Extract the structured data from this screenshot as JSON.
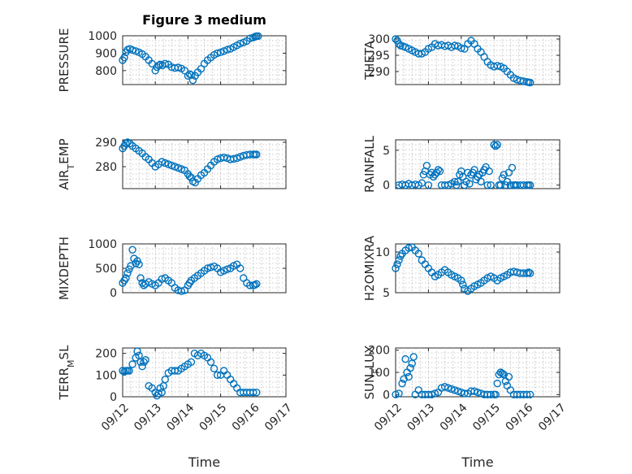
{
  "chart_data": [
    {
      "type": "scatter",
      "title": "Figure 3 medium",
      "ylabel": "PRESSURE",
      "ylim": [
        720,
        1000
      ],
      "yticks": [
        800,
        900,
        1000
      ],
      "yticklabels": [
        "800",
        "900",
        "1000"
      ],
      "xlim": [
        0,
        5
      ],
      "xticks": [
        0,
        1,
        2,
        3,
        4,
        5
      ],
      "x": [
        0.0,
        0.05,
        0.1,
        0.15,
        0.22,
        0.3,
        0.4,
        0.5,
        0.6,
        0.7,
        0.8,
        0.9,
        1.0,
        1.05,
        1.1,
        1.15,
        1.22,
        1.3,
        1.4,
        1.5,
        1.6,
        1.7,
        1.8,
        1.9,
        2.0,
        2.05,
        2.1,
        2.15,
        2.22,
        2.3,
        2.4,
        2.5,
        2.6,
        2.7,
        2.8,
        2.9,
        3.0,
        3.1,
        3.2,
        3.3,
        3.4,
        3.5,
        3.6,
        3.7,
        3.8,
        3.9,
        4.0,
        4.05,
        4.1,
        4.15
      ],
      "y": [
        860,
        875,
        905,
        920,
        925,
        918,
        912,
        905,
        895,
        880,
        860,
        840,
        800,
        820,
        830,
        835,
        830,
        840,
        835,
        820,
        815,
        818,
        812,
        800,
        770,
        780,
        775,
        745,
        770,
        790,
        810,
        840,
        860,
        875,
        890,
        900,
        905,
        912,
        920,
        925,
        935,
        945,
        955,
        962,
        970,
        985,
        990,
        995,
        998,
        998
      ]
    },
    {
      "type": "scatter",
      "ylabel": "THETA",
      "ylim": [
        286,
        301
      ],
      "yticks": [
        290,
        295,
        300
      ],
      "yticklabels": [
        "290",
        "295",
        "300"
      ],
      "xlim": [
        0,
        5
      ],
      "xticks": [
        0,
        1,
        2,
        3,
        4,
        5
      ],
      "x": [
        0.0,
        0.05,
        0.1,
        0.15,
        0.22,
        0.3,
        0.4,
        0.5,
        0.6,
        0.7,
        0.8,
        0.9,
        1.0,
        1.1,
        1.2,
        1.3,
        1.4,
        1.5,
        1.6,
        1.7,
        1.8,
        1.9,
        2.0,
        2.1,
        2.2,
        2.3,
        2.4,
        2.5,
        2.6,
        2.7,
        2.8,
        2.9,
        3.0,
        3.1,
        3.2,
        3.3,
        3.4,
        3.5,
        3.6,
        3.7,
        3.8,
        3.9,
        4.0,
        4.05,
        4.1
      ],
      "y": [
        300,
        299.5,
        298.5,
        298,
        297.8,
        297.5,
        297,
        296.5,
        296,
        295.5,
        295.5,
        296,
        297,
        297.5,
        298.5,
        298,
        298.2,
        297.8,
        298,
        297.5,
        298,
        297.8,
        297.2,
        297,
        298.5,
        299.5,
        298.5,
        297,
        296,
        294.5,
        293,
        292,
        291.5,
        291.8,
        291.5,
        291,
        290,
        289,
        288,
        287.5,
        287.2,
        287,
        286.8,
        286.7,
        286.6
      ]
    },
    {
      "type": "scatter",
      "ylabel": "AIR_TEMP",
      "ylim": [
        271,
        291
      ],
      "yticks": [
        280,
        290
      ],
      "yticklabels": [
        "280",
        "290"
      ],
      "xlim": [
        0,
        5
      ],
      "xticks": [
        0,
        1,
        2,
        3,
        4,
        5
      ],
      "x": [
        0.0,
        0.05,
        0.1,
        0.15,
        0.22,
        0.3,
        0.4,
        0.5,
        0.6,
        0.7,
        0.8,
        0.9,
        1.0,
        1.1,
        1.2,
        1.3,
        1.4,
        1.5,
        1.6,
        1.7,
        1.8,
        1.9,
        2.0,
        2.05,
        2.1,
        2.15,
        2.22,
        2.3,
        2.4,
        2.5,
        2.6,
        2.7,
        2.8,
        2.9,
        3.0,
        3.1,
        3.2,
        3.3,
        3.4,
        3.5,
        3.6,
        3.7,
        3.8,
        3.9,
        4.0,
        4.05,
        4.1
      ],
      "y": [
        287.5,
        288.5,
        289.5,
        290,
        289.5,
        288.5,
        287.5,
        286.5,
        285.5,
        284,
        283,
        281.5,
        280,
        281,
        282,
        281.5,
        281,
        280.5,
        280,
        279.5,
        279,
        278.5,
        277,
        276,
        275.5,
        274,
        273.5,
        275,
        276.5,
        277.5,
        279,
        280.5,
        282,
        283,
        283.5,
        283.8,
        283.5,
        283,
        283.2,
        283.5,
        284,
        284.5,
        284.8,
        285,
        285,
        285,
        285
      ]
    },
    {
      "type": "scatter",
      "ylabel": "RAINFALL",
      "ylim": [
        -0.5,
        6.5
      ],
      "yticks": [
        0,
        5
      ],
      "yticklabels": [
        "0",
        "5"
      ],
      "xlim": [
        0,
        5
      ],
      "xticks": [
        0,
        1,
        2,
        3,
        4,
        5
      ],
      "x": [
        0.1,
        0.2,
        0.3,
        0.4,
        0.5,
        0.6,
        0.7,
        0.8,
        0.85,
        0.9,
        0.95,
        1.0,
        1.05,
        1.1,
        1.15,
        1.2,
        1.25,
        1.3,
        1.35,
        1.4,
        1.5,
        1.6,
        1.7,
        1.8,
        1.85,
        1.9,
        1.95,
        2.0,
        2.05,
        2.1,
        2.15,
        2.2,
        2.25,
        2.3,
        2.35,
        2.4,
        2.45,
        2.5,
        2.55,
        2.6,
        2.65,
        2.7,
        2.75,
        2.8,
        2.85,
        2.9,
        3.0,
        3.05,
        3.1,
        3.15,
        3.2,
        3.25,
        3.3,
        3.35,
        3.4,
        3.45,
        3.5,
        3.55,
        3.6,
        3.65,
        3.7,
        3.8,
        3.9,
        4.0,
        4.05,
        4.1
      ],
      "y": [
        0,
        0.1,
        0,
        0.2,
        0,
        0.1,
        0,
        0.3,
        1.5,
        2,
        2.8,
        0,
        1.5,
        1.8,
        1.2,
        1.5,
        1.8,
        2.2,
        2,
        0,
        0,
        0,
        0.2,
        0.5,
        0,
        0.5,
        1.5,
        2,
        1.2,
        0,
        0.5,
        1.8,
        0.2,
        1.5,
        1.8,
        2.2,
        0.8,
        1.2,
        1.5,
        0.5,
        1.8,
        2.2,
        2.6,
        0,
        2,
        0,
        5.8,
        5.6,
        5.8,
        0,
        0,
        1,
        1.5,
        0,
        0.5,
        1.8,
        0,
        2.5,
        0,
        0,
        0,
        0,
        0,
        0,
        0,
        0
      ]
    },
    {
      "type": "scatter",
      "ylabel": "MIXDEPTH",
      "ylim": [
        0,
        1000
      ],
      "yticks": [
        0,
        500,
        1000
      ],
      "yticklabels": [
        "0",
        "500",
        "1000"
      ],
      "xlim": [
        0,
        5
      ],
      "xticks": [
        0,
        1,
        2,
        3,
        4,
        5
      ],
      "x": [
        0.0,
        0.05,
        0.1,
        0.15,
        0.2,
        0.25,
        0.3,
        0.35,
        0.4,
        0.45,
        0.5,
        0.55,
        0.6,
        0.65,
        0.7,
        0.8,
        0.9,
        1.0,
        1.1,
        1.2,
        1.3,
        1.4,
        1.5,
        1.6,
        1.7,
        1.8,
        1.9,
        2.0,
        2.05,
        2.1,
        2.2,
        2.3,
        2.4,
        2.5,
        2.6,
        2.7,
        2.8,
        2.9,
        3.0,
        3.1,
        3.2,
        3.3,
        3.4,
        3.5,
        3.6,
        3.7,
        3.8,
        3.9,
        4.0,
        4.05,
        4.1
      ],
      "y": [
        200,
        250,
        300,
        400,
        480,
        550,
        880,
        700,
        600,
        650,
        580,
        300,
        200,
        150,
        180,
        220,
        180,
        150,
        200,
        280,
        300,
        250,
        200,
        100,
        50,
        30,
        50,
        150,
        200,
        250,
        300,
        350,
        400,
        450,
        500,
        520,
        540,
        500,
        420,
        450,
        480,
        500,
        550,
        580,
        500,
        300,
        200,
        150,
        150,
        160,
        180
      ]
    },
    {
      "type": "scatter",
      "ylabel": "H2OMIXRA",
      "ylim": [
        5,
        11
      ],
      "yticks": [
        5,
        10
      ],
      "yticklabels": [
        "5",
        "10"
      ],
      "xlim": [
        0,
        5
      ],
      "xticks": [
        0,
        1,
        2,
        3,
        4,
        5
      ],
      "x": [
        0.0,
        0.05,
        0.1,
        0.15,
        0.2,
        0.3,
        0.4,
        0.5,
        0.6,
        0.7,
        0.8,
        0.9,
        1.0,
        1.1,
        1.2,
        1.3,
        1.4,
        1.5,
        1.6,
        1.7,
        1.8,
        1.9,
        2.0,
        2.05,
        2.1,
        2.2,
        2.3,
        2.4,
        2.5,
        2.6,
        2.7,
        2.8,
        2.9,
        3.0,
        3.1,
        3.2,
        3.3,
        3.4,
        3.5,
        3.6,
        3.7,
        3.8,
        3.9,
        4.0,
        4.05,
        4.1
      ],
      "y": [
        8,
        8.5,
        9,
        9.5,
        9.8,
        10.2,
        10.5,
        10.6,
        10.2,
        9.8,
        9,
        8.5,
        8,
        7.5,
        7,
        7.2,
        7.5,
        7.8,
        7.5,
        7.2,
        7,
        6.8,
        6.5,
        6,
        5.5,
        5.2,
        5.5,
        5.8,
        6,
        6.2,
        6.5,
        6.8,
        7,
        6.8,
        6.5,
        6.8,
        7,
        7.2,
        7.5,
        7.6,
        7.5,
        7.4,
        7.4,
        7.4,
        7.5,
        7.4
      ]
    },
    {
      "type": "scatter",
      "ylabel": "TERR_MSL",
      "ylim": [
        0,
        225
      ],
      "yticks": [
        0,
        100,
        200
      ],
      "yticklabels": [
        "0",
        "100",
        "200"
      ],
      "xlim": [
        0,
        5
      ],
      "xticks": [
        0,
        1,
        2,
        3,
        4,
        5
      ],
      "x": [
        0.0,
        0.05,
        0.1,
        0.15,
        0.2,
        0.3,
        0.4,
        0.45,
        0.5,
        0.55,
        0.6,
        0.65,
        0.7,
        0.8,
        0.9,
        1.0,
        1.05,
        1.1,
        1.15,
        1.2,
        1.25,
        1.3,
        1.4,
        1.5,
        1.6,
        1.7,
        1.8,
        1.9,
        2.0,
        2.1,
        2.2,
        2.3,
        2.4,
        2.5,
        2.6,
        2.7,
        2.8,
        2.9,
        3.0,
        3.1,
        3.2,
        3.3,
        3.4,
        3.5,
        3.6,
        3.7,
        3.8,
        3.9,
        4.0,
        4.1
      ],
      "y": [
        120,
        115,
        120,
        120,
        120,
        150,
        180,
        210,
        190,
        160,
        140,
        160,
        170,
        50,
        40,
        20,
        5,
        15,
        40,
        20,
        50,
        80,
        110,
        120,
        120,
        120,
        130,
        140,
        150,
        160,
        200,
        190,
        200,
        190,
        180,
        160,
        130,
        100,
        100,
        120,
        100,
        80,
        60,
        40,
        20,
        20,
        20,
        20,
        20,
        20
      ]
    },
    {
      "type": "scatter",
      "ylabel": "SUN_FLUX",
      "ylim": [
        -10,
        210
      ],
      "yticks": [
        0,
        100,
        200
      ],
      "yticklabels": [
        "0",
        "100",
        "200"
      ],
      "xlim": [
        0,
        5
      ],
      "xticks": [
        0,
        1,
        2,
        3,
        4,
        5
      ],
      "x": [
        0.0,
        0.1,
        0.2,
        0.25,
        0.3,
        0.35,
        0.4,
        0.45,
        0.5,
        0.55,
        0.6,
        0.7,
        0.8,
        0.9,
        1.0,
        1.1,
        1.2,
        1.3,
        1.4,
        1.5,
        1.6,
        1.7,
        1.8,
        1.9,
        2.0,
        2.1,
        2.2,
        2.3,
        2.4,
        2.5,
        2.6,
        2.7,
        2.8,
        2.9,
        3.0,
        3.05,
        3.1,
        3.15,
        3.2,
        3.25,
        3.3,
        3.35,
        3.4,
        3.45,
        3.5,
        3.6,
        3.7,
        3.8,
        3.9,
        4.0,
        4.1
      ],
      "y": [
        0,
        5,
        50,
        70,
        160,
        100,
        80,
        120,
        140,
        170,
        0,
        20,
        0,
        0,
        0,
        0,
        5,
        10,
        30,
        35,
        30,
        25,
        20,
        15,
        10,
        5,
        5,
        15,
        15,
        10,
        5,
        0,
        0,
        0,
        0,
        0,
        50,
        90,
        100,
        95,
        90,
        60,
        40,
        80,
        20,
        0,
        0,
        0,
        0,
        0,
        0
      ]
    }
  ],
  "x_ticklabels": [
    "09/12",
    "09/13",
    "09/14",
    "09/15",
    "09/16",
    "09/17"
  ],
  "x_axis_label": "Time",
  "marker_color": "#0072BD"
}
